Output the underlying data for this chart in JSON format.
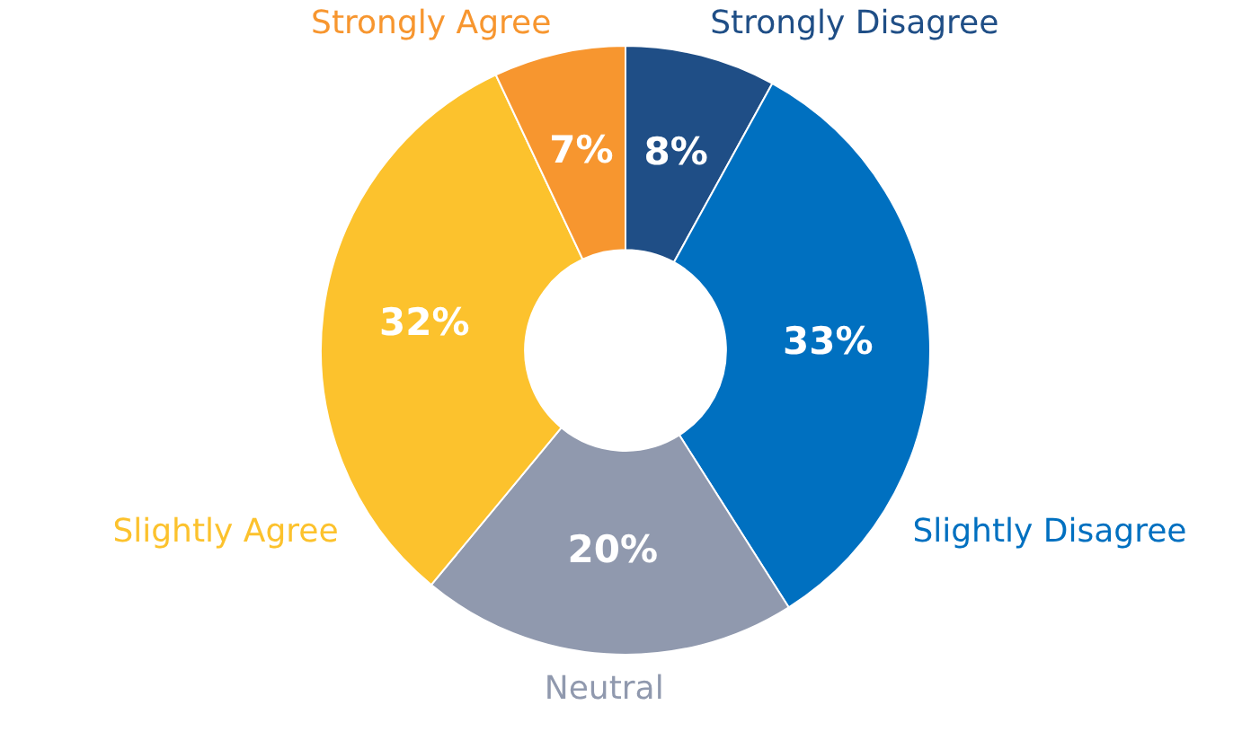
{
  "chart_data": {
    "type": "donut",
    "categories": [
      "Strongly Disagree",
      "Slightly Disagree",
      "Neutral",
      "Slightly Agree",
      "Strongly Agree"
    ],
    "values": [
      8,
      33,
      20,
      32,
      7
    ],
    "colors": [
      "#1f4e86",
      "#0070c0",
      "#9099ae",
      "#fcc22d",
      "#f7962f"
    ],
    "value_labels": [
      "8%",
      "33%",
      "20%",
      "32%",
      "7%"
    ]
  }
}
